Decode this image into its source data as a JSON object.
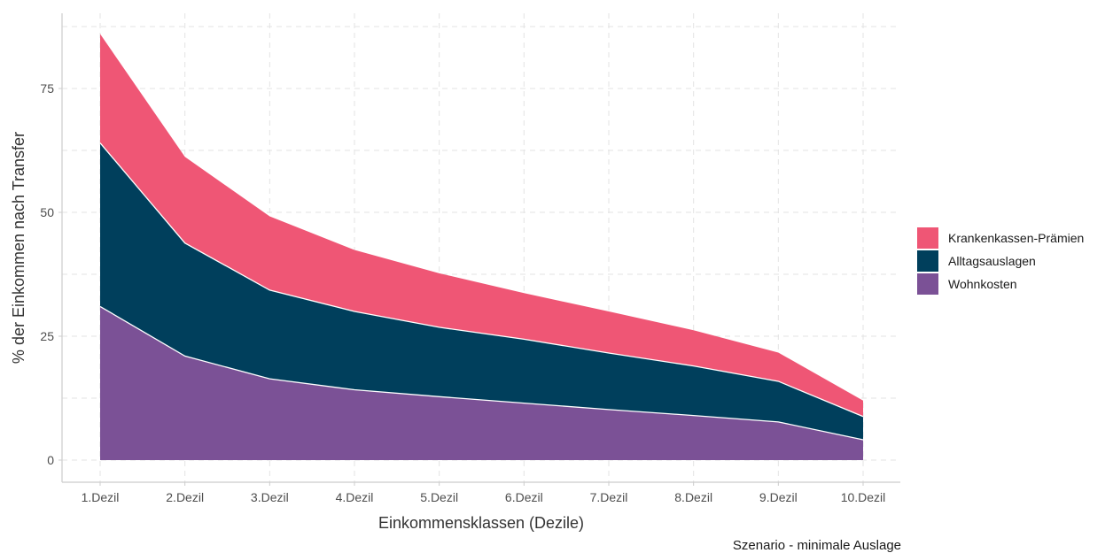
{
  "chart_data": {
    "type": "area",
    "stacked": true,
    "categories": [
      "1.Dezil",
      "2.Dezil",
      "3.Dezil",
      "4.Dezil",
      "5.Dezil",
      "6.Dezil",
      "7.Dezil",
      "8.Dezil",
      "9.Dezil",
      "10.Dezil"
    ],
    "series": [
      {
        "name": "Wohnkosten",
        "color": "#7B5196",
        "values": [
          31.0,
          21.0,
          16.4,
          14.2,
          12.8,
          11.5,
          10.2,
          9.0,
          7.7,
          4.1
        ]
      },
      {
        "name": "Alltagsauslagen",
        "color": "#003F5C",
        "values": [
          33.0,
          22.8,
          17.9,
          15.8,
          14.0,
          12.9,
          11.4,
          10.0,
          8.2,
          4.7
        ]
      },
      {
        "name": "Krankenkassen-Prämien",
        "color": "#EF5675",
        "values": [
          22.0,
          17.4,
          14.9,
          12.4,
          10.9,
          9.3,
          8.4,
          7.2,
          5.8,
          3.2
        ]
      }
    ],
    "xlabel": "Einkommensklassen (Dezile)",
    "ylabel": "% der Einkommen nach Transfer",
    "ylim": [
      0,
      88
    ],
    "yticks": [
      0,
      25,
      50,
      75
    ],
    "grid": true,
    "legend_position": "right",
    "legend_order": [
      "Krankenkassen-Prämien",
      "Alltagsauslagen",
      "Wohnkosten"
    ],
    "caption": "Szenario - minimale Auslage"
  }
}
